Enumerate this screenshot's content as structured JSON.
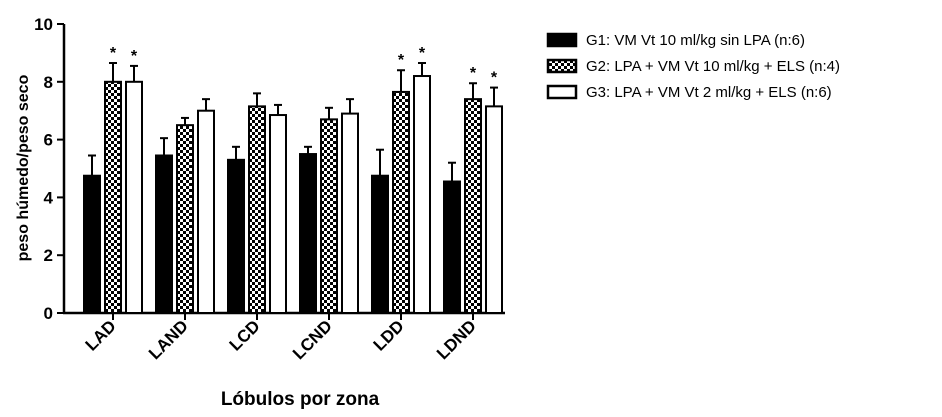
{
  "chart_data": {
    "type": "bar",
    "xlabel": "Lóbulos por zona",
    "ylabel": "peso húmedo/peso seco",
    "ylim": [
      0,
      10
    ],
    "yticks": [
      0,
      2,
      4,
      6,
      8,
      10
    ],
    "categories": [
      "LAD",
      "LAND",
      "LCD",
      "LCND",
      "LDD",
      "LDND"
    ],
    "series": [
      {
        "name": "G1: VM Vt 10 ml/kg sin LPA (n:6)",
        "values": [
          4.75,
          5.45,
          5.3,
          5.5,
          4.75,
          4.55
        ],
        "errors": [
          0.7,
          0.6,
          0.45,
          0.25,
          0.9,
          0.65
        ],
        "fill": "solid",
        "significant": [
          false,
          false,
          false,
          false,
          false,
          false
        ]
      },
      {
        "name": "G2: LPA + VM Vt 10 ml/kg + ELS (n:4)",
        "values": [
          8.0,
          6.5,
          7.15,
          6.7,
          7.65,
          7.4
        ],
        "errors": [
          0.65,
          0.25,
          0.45,
          0.4,
          0.75,
          0.55
        ],
        "fill": "checker",
        "significant": [
          true,
          false,
          false,
          false,
          true,
          true
        ]
      },
      {
        "name": "G3: LPA + VM Vt 2 ml/kg + ELS (n:6)",
        "values": [
          8.0,
          7.0,
          6.85,
          6.9,
          8.2,
          7.15
        ],
        "errors": [
          0.55,
          0.4,
          0.35,
          0.5,
          0.45,
          0.65
        ],
        "fill": "white",
        "significant": [
          true,
          false,
          false,
          false,
          true,
          true
        ]
      }
    ],
    "significance_marker": "*",
    "legend_position": "top-right",
    "colors": {
      "bar_stroke": "#000000",
      "solid": "#000000",
      "white": "#ffffff"
    }
  }
}
